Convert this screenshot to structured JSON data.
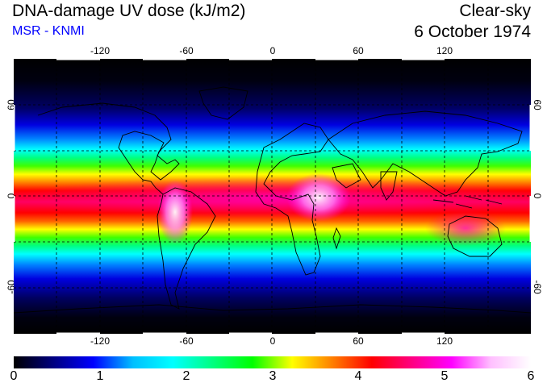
{
  "header": {
    "title": "DNA-damage UV dose (kJ/m2)",
    "source": "MSR - KNMI",
    "sky_condition": "Clear-sky",
    "date": "6 October 1974"
  },
  "colors": {
    "source_text": "#0000ff",
    "coastline": "#000000",
    "graticule": "#000000"
  },
  "map": {
    "projection": "equirectangular",
    "lon_range": [
      -180,
      180
    ],
    "lat_range": [
      -90,
      90
    ],
    "gridlines": "dashed every 30 degrees",
    "lon_ticks": [
      "-120",
      "-60",
      "0",
      "60",
      "120"
    ],
    "lat_ticks": [
      "60",
      "0",
      "-60"
    ]
  },
  "colorbar": {
    "min": 0,
    "max": 6,
    "labels": [
      "0",
      "1",
      "2",
      "3",
      "4",
      "5",
      "6"
    ],
    "stops": [
      "#000000",
      "#000080",
      "#0000ff",
      "#00c0ff",
      "#00ffff",
      "#00ff80",
      "#00ff00",
      "#ffff00",
      "#ff8000",
      "#ff0000",
      "#ff0080",
      "#ff00ff",
      "#ffc0ff",
      "#ffffff"
    ]
  }
}
